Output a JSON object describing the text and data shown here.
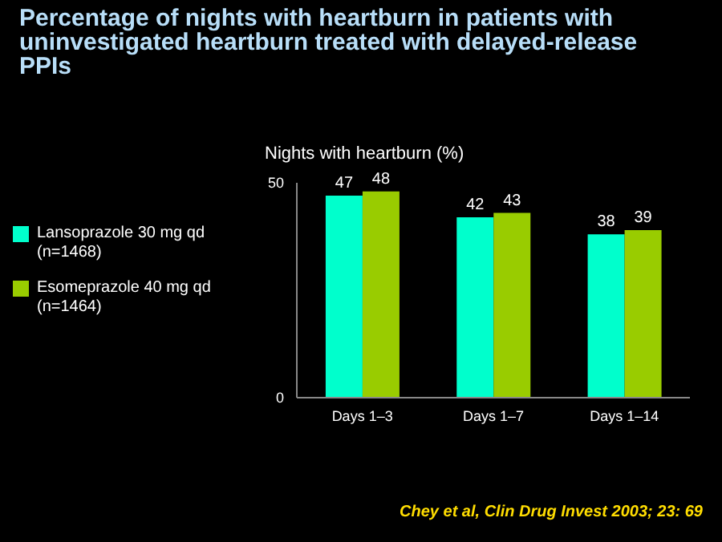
{
  "chart_data": {
    "type": "bar",
    "title": "Percentage of nights with heartburn in patients with uninvestigated heartburn treated with delayed-release PPIs",
    "ylabel": "Nights with heartburn (%)",
    "categories": [
      "Days 1–3",
      "Days 1–7",
      "Days 1–14"
    ],
    "series": [
      {
        "name": "Lansoprazole 30 mg qd (n=1468)",
        "color": "#00ffcc",
        "values": [
          47,
          42,
          38
        ]
      },
      {
        "name": "Esomeprazole 40 mg qd (n=1464)",
        "color": "#99cc00",
        "values": [
          48,
          43,
          39
        ]
      }
    ],
    "ylim": [
      0,
      50
    ],
    "yticks": [
      0,
      50
    ],
    "grid": false,
    "legend": "left",
    "data_labels": true,
    "annotations": [
      "Chey et al, Clin Drug Invest 2003; 23: 69"
    ]
  }
}
